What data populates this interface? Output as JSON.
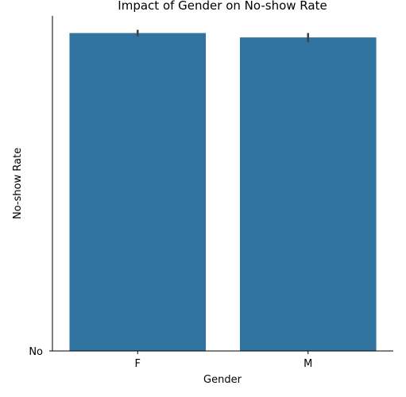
{
  "chart_data": {
    "type": "bar",
    "title": "Impact of Gender on No-show Rate",
    "xlabel": "Gender",
    "ylabel": "No-show Rate",
    "categories": [
      "F",
      "M"
    ],
    "values": [
      0.797,
      0.786
    ],
    "error_bars": [
      [
        0.789,
        0.805
      ],
      [
        0.774,
        0.797
      ]
    ],
    "y_tick_labels": [
      {
        "value": 0,
        "label": "No"
      }
    ],
    "ylim": [
      0,
      0.84
    ],
    "bar_color": "#3274a1",
    "error_bar_color": "#424242",
    "grid": false,
    "legend": "none"
  }
}
